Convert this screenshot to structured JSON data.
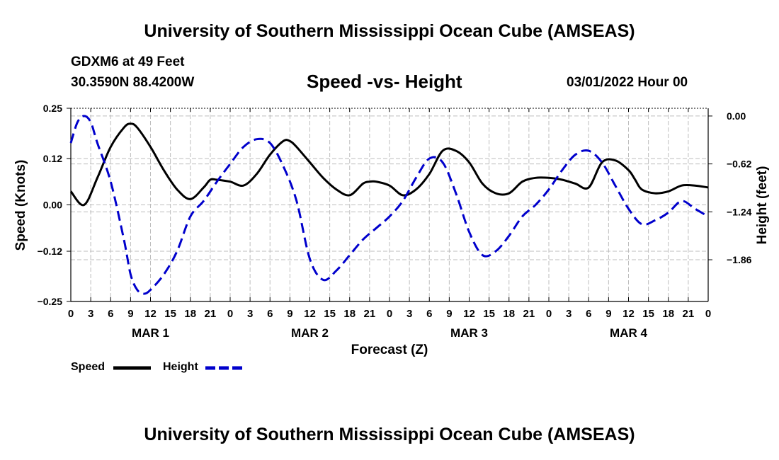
{
  "header": {
    "title": "University of Southern Mississippi Ocean Cube (AMSEAS)",
    "station": "GDXM6 at 49 Feet",
    "coords": "30.3590N  88.4200W",
    "datetime": "03/01/2022 Hour 00"
  },
  "footer": {
    "title": "University of Southern Mississippi Ocean Cube (AMSEAS)"
  },
  "legend": {
    "speed_label": "Speed",
    "height_label": "Height"
  },
  "colors": {
    "speed": "#000000",
    "height": "#0000cc",
    "grid": "#bdbdbd"
  },
  "chart_data": {
    "type": "line",
    "title": "Speed -vs- Height",
    "xlabel": "Forecast (Z)",
    "ylabel": "Speed (Knots)",
    "y2label": "Height (feet)",
    "x_range_hours": [
      0,
      96
    ],
    "xtick_step_hours": 3,
    "xtick_labels": [
      "0",
      "3",
      "6",
      "9",
      "12",
      "15",
      "18",
      "21",
      "0",
      "3",
      "6",
      "9",
      "12",
      "15",
      "18",
      "21",
      "0",
      "3",
      "6",
      "9",
      "12",
      "15",
      "18",
      "21",
      "0",
      "3",
      "6",
      "9",
      "12",
      "15",
      "18",
      "21",
      "0"
    ],
    "day_labels": [
      {
        "label": "MAR 1",
        "hour": 12
      },
      {
        "label": "MAR 2",
        "hour": 36
      },
      {
        "label": "MAR 3",
        "hour": 60
      },
      {
        "label": "MAR 4",
        "hour": 84
      }
    ],
    "ylim": [
      -0.25,
      0.25
    ],
    "yticks": [
      0.25,
      0.12,
      0.0,
      -0.12,
      -0.25
    ],
    "ytick_labels": [
      "0.25",
      "0.12",
      "0.00",
      "−0.12",
      "−0.25"
    ],
    "y2lim": [
      -2.4,
      0.1
    ],
    "y2ticks": [
      0.0,
      -0.62,
      -1.24,
      -1.86
    ],
    "y2tick_labels": [
      "0.00",
      "−0.62",
      "−1.24",
      "−1.86"
    ],
    "grid": true,
    "series": [
      {
        "name": "Speed",
        "axis": "left",
        "style": "solid",
        "x": [
          0,
          2,
          4,
          6,
          8,
          9,
          10,
          12,
          14,
          16,
          18,
          20,
          21,
          22,
          24,
          26,
          28,
          30,
          32,
          33,
          34,
          36,
          38,
          40,
          42,
          44,
          45,
          46,
          48,
          50,
          52,
          54,
          56,
          58,
          60,
          62,
          64,
          66,
          68,
          70,
          72,
          74,
          76,
          78,
          80,
          82,
          84,
          85,
          86,
          88,
          90,
          92,
          94,
          96
        ],
        "y": [
          0.035,
          0.0,
          0.07,
          0.15,
          0.2,
          0.21,
          0.2,
          0.15,
          0.09,
          0.04,
          0.015,
          0.045,
          0.065,
          0.065,
          0.06,
          0.05,
          0.08,
          0.13,
          0.165,
          0.165,
          0.15,
          0.11,
          0.07,
          0.04,
          0.025,
          0.055,
          0.06,
          0.06,
          0.05,
          0.025,
          0.04,
          0.08,
          0.14,
          0.14,
          0.11,
          0.055,
          0.03,
          0.03,
          0.06,
          0.07,
          0.07,
          0.065,
          0.055,
          0.045,
          0.11,
          0.115,
          0.09,
          0.065,
          0.04,
          0.03,
          0.035,
          0.05,
          0.05,
          0.045
        ]
      },
      {
        "name": "Height",
        "axis": "right",
        "style": "dashed",
        "x": [
          0,
          1,
          2,
          3,
          4,
          6,
          8,
          9,
          10,
          11,
          12,
          14,
          16,
          18,
          20,
          22,
          24,
          26,
          28,
          30,
          32,
          34,
          36,
          38,
          40,
          42,
          44,
          46,
          48,
          50,
          52,
          54,
          56,
          58,
          60,
          62,
          64,
          66,
          68,
          70,
          72,
          74,
          76,
          78,
          80,
          82,
          84,
          86,
          88,
          90,
          92,
          94,
          96
        ],
        "y": [
          -0.35,
          -0.08,
          0.0,
          -0.08,
          -0.35,
          -0.85,
          -1.6,
          -2.05,
          -2.25,
          -2.3,
          -2.25,
          -2.05,
          -1.75,
          -1.3,
          -1.1,
          -0.85,
          -0.62,
          -0.4,
          -0.3,
          -0.35,
          -0.65,
          -1.1,
          -1.85,
          -2.12,
          -2.0,
          -1.8,
          -1.6,
          -1.45,
          -1.3,
          -1.1,
          -0.8,
          -0.55,
          -0.6,
          -1.0,
          -1.5,
          -1.8,
          -1.75,
          -1.55,
          -1.3,
          -1.15,
          -0.95,
          -0.7,
          -0.5,
          -0.45,
          -0.6,
          -0.9,
          -1.2,
          -1.4,
          -1.35,
          -1.25,
          -1.1,
          -1.2,
          -1.3
        ]
      }
    ]
  }
}
